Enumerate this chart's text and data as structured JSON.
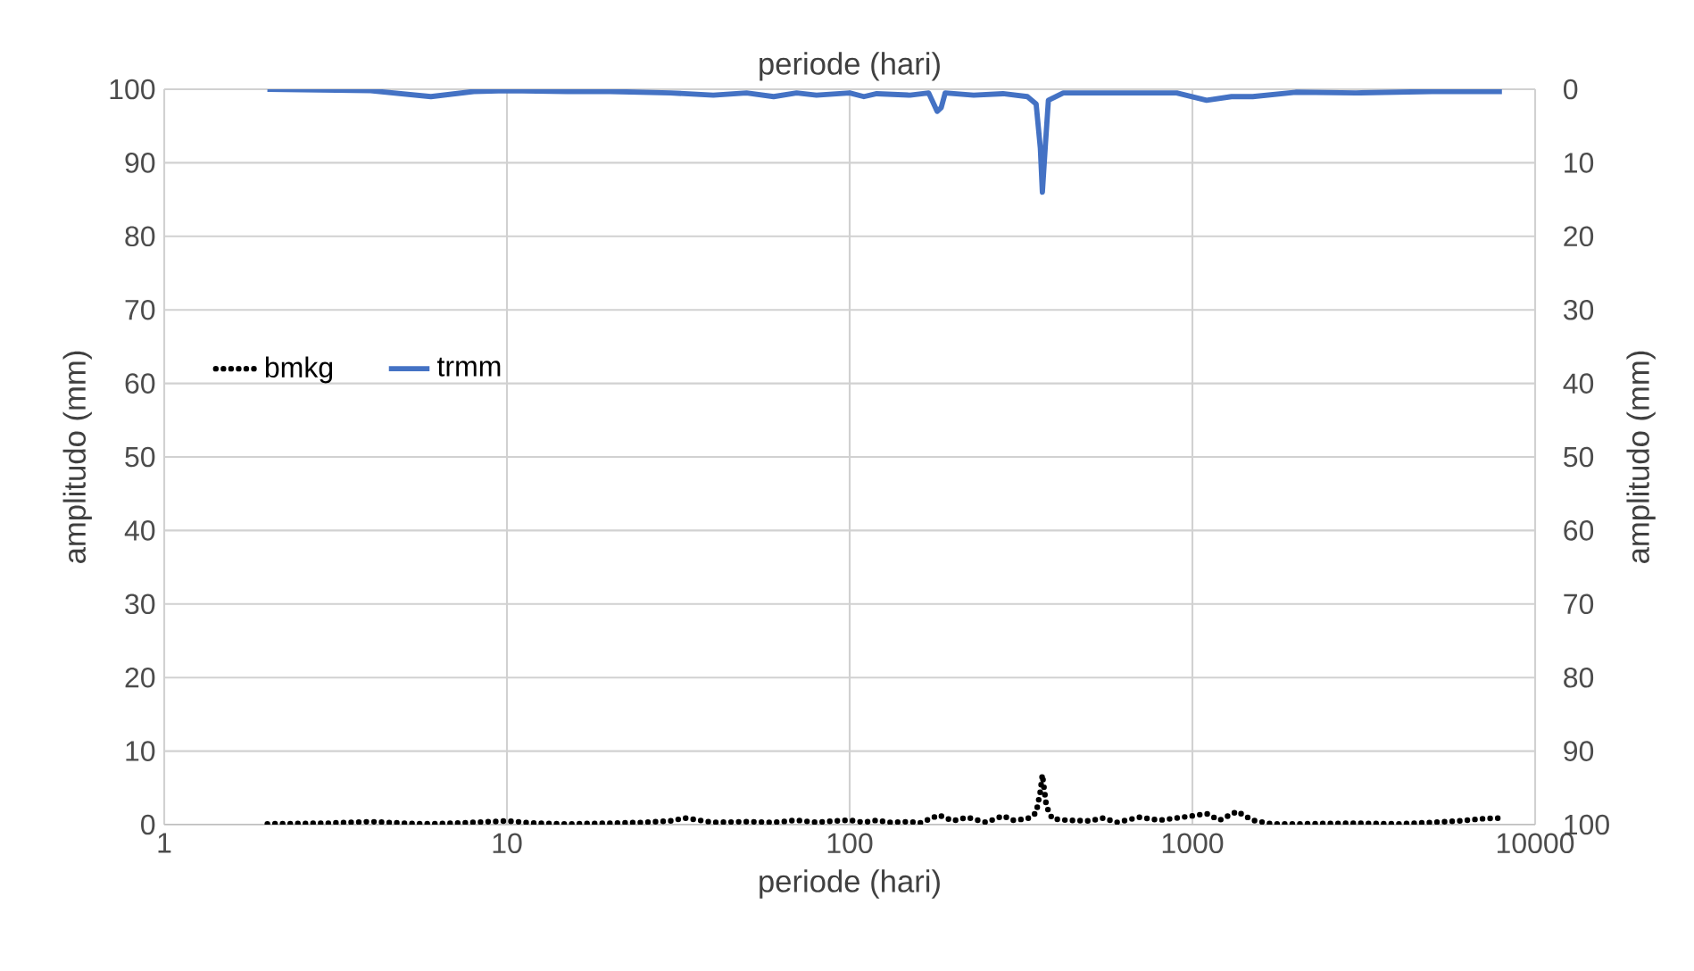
{
  "chart_data": {
    "type": "line",
    "xlabel": "periode (hari)",
    "x2label": "periode (hari)",
    "ylabel": "amplitudo (mm)",
    "y2label": "amplitudo (mm)",
    "log": "x",
    "grid": true,
    "legend": "left",
    "xlim": [
      1,
      10000
    ],
    "xticks": [
      1,
      10,
      100,
      1000,
      10000
    ],
    "ylim": [
      0,
      100
    ],
    "yticks": [
      0,
      10,
      20,
      30,
      40,
      50,
      60,
      70,
      80,
      90,
      100
    ],
    "y2lim": [
      100,
      0
    ],
    "y2ticks": [
      0,
      10,
      20,
      30,
      40,
      50,
      60,
      70,
      80,
      90,
      100
    ],
    "series": [
      {
        "name": "bmkg",
        "color": "#000000",
        "line_style": "dotted",
        "x": [
          2,
          3,
          4,
          5,
          6,
          8,
          10,
          12,
          15,
          20,
          25,
          30,
          33,
          40,
          50,
          60,
          70,
          80,
          90,
          100,
          110,
          120,
          130,
          150,
          160,
          170,
          182,
          200,
          220,
          250,
          280,
          300,
          330,
          350,
          360,
          365,
          375,
          390,
          430,
          500,
          550,
          600,
          700,
          800,
          900,
          1000,
          1100,
          1200,
          1350,
          1500,
          1700,
          2000,
          3000,
          4000,
          5000,
          6000,
          7000,
          8000
        ],
        "values": [
          0.1,
          0.2,
          0.4,
          0.2,
          0.1,
          0.3,
          0.5,
          0.2,
          0.1,
          0.2,
          0.3,
          0.5,
          0.9,
          0.3,
          0.4,
          0.3,
          0.6,
          0.3,
          0.5,
          0.6,
          0.3,
          0.6,
          0.3,
          0.4,
          0.2,
          0.7,
          1.3,
          0.5,
          1.0,
          0.3,
          1.2,
          0.6,
          0.8,
          1.6,
          4.5,
          6.8,
          2.5,
          0.8,
          0.6,
          0.5,
          0.9,
          0.3,
          1.0,
          0.6,
          0.9,
          1.2,
          1.5,
          0.6,
          1.8,
          0.6,
          0.1,
          0.1,
          0.2,
          0.1,
          0.3,
          0.5,
          0.8,
          0.9
        ]
      },
      {
        "name": "trmm",
        "color": "#4472c4",
        "line_style": "solid",
        "axis": "y2",
        "x": [
          2,
          4,
          6,
          8,
          10,
          15,
          20,
          30,
          40,
          50,
          60,
          70,
          80,
          100,
          110,
          120,
          150,
          170,
          180,
          185,
          190,
          230,
          280,
          330,
          350,
          360,
          365,
          372,
          380,
          420,
          500,
          700,
          900,
          1100,
          1300,
          1500,
          2000,
          3000,
          5000,
          8000
        ],
        "values": [
          0,
          0.2,
          1,
          0.3,
          0.2,
          0.3,
          0.3,
          0.5,
          0.8,
          0.5,
          1,
          0.5,
          0.8,
          0.5,
          1,
          0.6,
          0.8,
          0.5,
          3,
          2.5,
          0.5,
          0.8,
          0.6,
          1,
          2,
          8,
          14,
          8,
          1.5,
          0.5,
          0.5,
          0.5,
          0.5,
          1.5,
          1,
          1,
          0.4,
          0.5,
          0.3,
          0.3
        ]
      }
    ]
  }
}
